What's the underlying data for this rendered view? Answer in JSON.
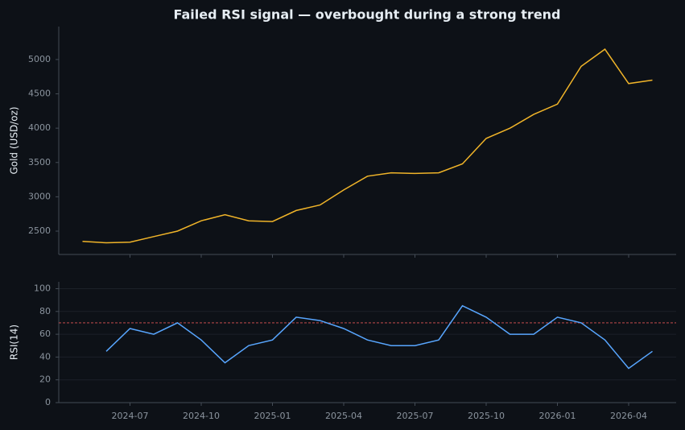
{
  "chart_data": [
    {
      "type": "line",
      "title": "Failed RSI signal — overbought during a strong trend",
      "y_label": "Gold (USD/oz)",
      "x": [
        "2024-05",
        "2024-06",
        "2024-07",
        "2024-08",
        "2024-09",
        "2024-10",
        "2024-11",
        "2024-12",
        "2025-01",
        "2025-02",
        "2025-03",
        "2025-04",
        "2025-05",
        "2025-06",
        "2025-07",
        "2025-08",
        "2025-09",
        "2025-10",
        "2025-11",
        "2025-12",
        "2026-01",
        "2026-02",
        "2026-03",
        "2026-04",
        "2026-05"
      ],
      "series": [
        {
          "name": "Gold",
          "color": "#f0b429",
          "values": [
            2350,
            2330,
            2340,
            2420,
            2500,
            2650,
            2740,
            2650,
            2640,
            2800,
            2880,
            3100,
            3300,
            3350,
            3340,
            3350,
            3480,
            3850,
            4000,
            4200,
            4350,
            4900,
            5150,
            4650,
            4700
          ]
        }
      ],
      "xlim": [
        "2024-04",
        "2026-06"
      ],
      "ylim": [
        2160,
        5480
      ],
      "yticks": [
        2500,
        3000,
        3500,
        4000,
        4500,
        5000
      ]
    },
    {
      "type": "line",
      "y_label": "RSI(14)",
      "x": [
        "2024-05",
        "2024-06",
        "2024-07",
        "2024-08",
        "2024-09",
        "2024-10",
        "2024-11",
        "2024-12",
        "2025-01",
        "2025-02",
        "2025-03",
        "2025-04",
        "2025-05",
        "2025-06",
        "2025-07",
        "2025-08",
        "2025-09",
        "2025-10",
        "2025-11",
        "2025-12",
        "2026-01",
        "2026-02",
        "2026-03",
        "2026-04",
        "2026-05"
      ],
      "series": [
        {
          "name": "RSI",
          "color": "#58a6ff",
          "values": [
            null,
            45,
            65,
            60,
            70,
            55,
            35,
            50,
            55,
            75,
            72,
            65,
            55,
            50,
            50,
            55,
            85,
            75,
            60,
            60,
            75,
            70,
            55,
            30,
            45
          ]
        }
      ],
      "threshold": 70,
      "threshold_color": "#e05555",
      "xlim": [
        "2024-04",
        "2026-06"
      ],
      "ylim": [
        0,
        106
      ],
      "yticks": [
        0,
        20,
        40,
        60,
        80,
        100
      ],
      "xticks": [
        "2024-07",
        "2024-10",
        "2025-01",
        "2025-04",
        "2025-07",
        "2025-10",
        "2026-01",
        "2026-04"
      ],
      "grid": true
    }
  ]
}
